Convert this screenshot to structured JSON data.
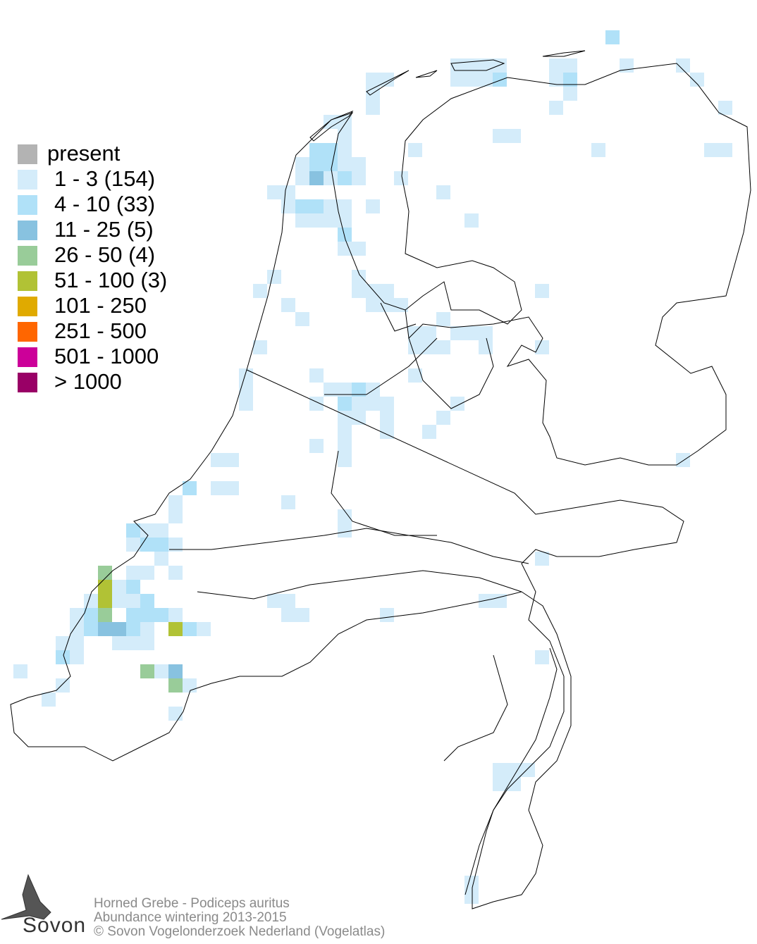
{
  "legend": [
    {
      "label": "present",
      "color": "#b3b3b3"
    },
    {
      "label": "1 - 3 (154)",
      "color": "#d4ecfa"
    },
    {
      "label": "4 - 10 (33)",
      "color": "#b0e1f8"
    },
    {
      "label": "11 - 25 (5)",
      "color": "#88c2e0"
    },
    {
      "label": "26 - 50 (4)",
      "color": "#99cc99"
    },
    {
      "label": "51 - 100 (3)",
      "color": "#b1c235"
    },
    {
      "label": "101 - 250",
      "color": "#e0aa00"
    },
    {
      "label": "251 - 500",
      "color": "#ff6600"
    },
    {
      "label": "501 - 1000",
      "color": "#cc0099"
    },
    {
      "label": "> 1000",
      "color": "#990066"
    }
  ],
  "footer": {
    "species": "Horned Grebe - Podiceps auritus",
    "subtitle": "Abundance wintering 2013-2015",
    "copyright": "© Sovon Vogelonderzoek Nederland (Vogelatlas)"
  },
  "logo": {
    "text": "Sovon"
  }
}
